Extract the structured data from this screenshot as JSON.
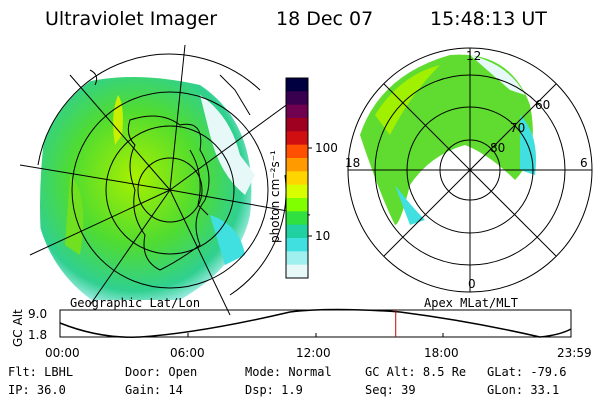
{
  "header": {
    "title": "Ultraviolet Imager",
    "date": "18 Dec 07",
    "time": "15:48:13 UT"
  },
  "left_map": {
    "caption": "Geographic Lat/Lon"
  },
  "right_map": {
    "caption": "Apex MLat/MLT",
    "mlt_labels": [
      "12",
      "18",
      "6",
      "0"
    ],
    "lat_labels": [
      "60",
      "70",
      "80"
    ]
  },
  "colorbar": {
    "unit_label": "photon cm⁻²s⁻¹",
    "tick_labels": [
      "100",
      "10"
    ],
    "colors": [
      "#000040",
      "#3a0050",
      "#700050",
      "#a00020",
      "#d01010",
      "#ff5000",
      "#ff9a00",
      "#ffd500",
      "#d8ff00",
      "#80ff00",
      "#30e040",
      "#20d0a0",
      "#40e0e0",
      "#a0f0f0",
      "#e6f8f8"
    ]
  },
  "alt_plot": {
    "ylabel": "GC Alt",
    "y_ticks": [
      "9.0",
      "1.8"
    ],
    "x_ticks": [
      "00:00",
      "06:00",
      "12:00",
      "18:00",
      "23:59"
    ],
    "current_time_fraction": 0.657,
    "line_color": "#cc0000"
  },
  "info": {
    "row1": [
      {
        "label": "Flt:",
        "value": "LBHL"
      },
      {
        "label": "Door:",
        "value": "Open"
      },
      {
        "label": "Mode:",
        "value": "Normal"
      },
      {
        "label": "GC Alt:",
        "value": "8.5 Re"
      },
      {
        "label": "GLat:",
        "value": "-79.6"
      }
    ],
    "row2": [
      {
        "label": "IP:",
        "value": "36.0"
      },
      {
        "label": "Gain:",
        "value": "14"
      },
      {
        "label": "Dsp:",
        "value": "1.9"
      },
      {
        "label": "Seq:",
        "value": "39"
      },
      {
        "label": "GLon:",
        "value": "33.1"
      }
    ]
  }
}
